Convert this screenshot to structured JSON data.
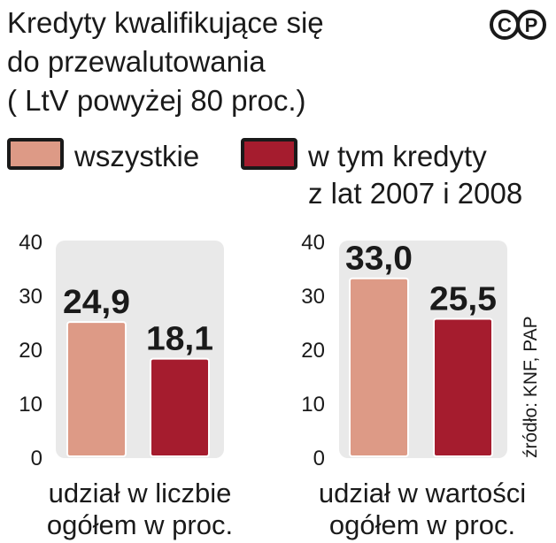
{
  "title_lines": [
    "Kredyty kwalifikujące się",
    "do przewalutowania",
    "( LtV powyżej 80 proc.)"
  ],
  "logo_text": "CP",
  "legend": {
    "all": {
      "label": "wszystkie",
      "color": "#dd9a86"
    },
    "subset": {
      "label_line1": "w tym kredyty",
      "label_line2": "z lat 2007 i 2008",
      "color": "#a51c2e"
    }
  },
  "chart_data": [
    {
      "type": "bar",
      "categories": [
        "wszystkie",
        "w tym kredyty z lat 2007 i 2008"
      ],
      "values": [
        24.9,
        18.1
      ],
      "data_labels": [
        "24,9",
        "18,1"
      ],
      "colors": [
        "#dd9a86",
        "#a51c2e"
      ],
      "ylim": [
        0,
        40
      ],
      "yticks": [
        "0",
        "10",
        "20",
        "30",
        "40"
      ],
      "xlabel_lines": [
        "udział w liczbie",
        "ogółem w proc."
      ]
    },
    {
      "type": "bar",
      "categories": [
        "wszystkie",
        "w tym kredyty z lat 2007 i 2008"
      ],
      "values": [
        33.0,
        25.5
      ],
      "data_labels": [
        "33,0",
        "25,5"
      ],
      "colors": [
        "#dd9a86",
        "#a51c2e"
      ],
      "ylim": [
        0,
        40
      ],
      "yticks": [
        "0",
        "10",
        "20",
        "30",
        "40"
      ],
      "xlabel_lines": [
        "udział w wartości",
        "ogółem w proc."
      ]
    }
  ],
  "source": "źródło: KNF, PAP"
}
